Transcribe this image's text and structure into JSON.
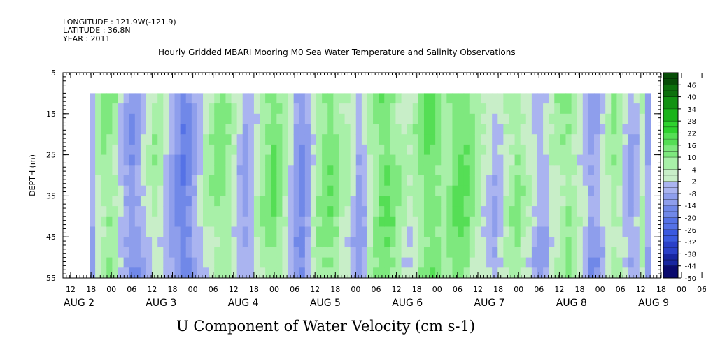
{
  "header": {
    "longitude": "LONGITUDE : 121.9W(-121.9)",
    "latitude": "LATITUDE : 36.8N",
    "year": "YEAR : 2011"
  },
  "chart_data": {
    "type": "heatmap",
    "title": "Hourly Gridded MBARI Mooring M0 Sea Water Temperature and Salinity Observations",
    "xlabel": "U Component of Water Velocity (cm s-1)",
    "ylabel": "DEPTH (m)",
    "ylim": [
      5,
      55
    ],
    "y_inverted": true,
    "y_ticks": [
      5,
      15,
      25,
      35,
      45,
      55
    ],
    "x_hour_ticks": [
      "12",
      "18",
      "00",
      "06",
      "12",
      "18",
      "00",
      "06",
      "12",
      "18",
      "00",
      "06",
      "12",
      "18",
      "00",
      "06",
      "12",
      "18",
      "00",
      "06",
      "12",
      "18",
      "00",
      "06",
      "12",
      "18",
      "00",
      "06",
      "12",
      "18",
      "00",
      "06"
    ],
    "x_day_labels": [
      "AUG  2",
      "AUG  3",
      "AUG  4",
      "AUG  5",
      "AUG  6",
      "AUG  7",
      "AUG  8",
      "AUG  9"
    ],
    "depth_range": [
      10,
      55
    ],
    "colorbar": {
      "levels": [
        -50,
        -44,
        -38,
        -32,
        -26,
        -20,
        -14,
        -8,
        -2,
        4,
        10,
        16,
        22,
        28,
        34,
        40,
        46
      ],
      "labels": [
        "-50",
        "-44",
        "-38",
        "-32",
        "-26",
        "-20",
        "-14",
        "-8",
        "-2",
        "4",
        "10",
        "16",
        "22",
        "28",
        "34",
        "40",
        "46"
      ]
    },
    "column_u_values": [
      -6,
      4,
      8,
      10,
      6,
      -2,
      -8,
      -12,
      -10,
      -4,
      2,
      6,
      4,
      -2,
      -8,
      -14,
      -18,
      -14,
      -8,
      -2,
      4,
      8,
      10,
      12,
      8,
      2,
      -4,
      -8,
      -4,
      2,
      8,
      12,
      14,
      10,
      6,
      -2,
      -10,
      -14,
      -8,
      2,
      8,
      12,
      14,
      10,
      6,
      4,
      -2,
      -8,
      -4,
      4,
      10,
      14,
      16,
      12,
      8,
      4,
      2,
      6,
      10,
      14,
      16,
      12,
      8,
      10,
      14,
      16,
      14,
      10,
      6,
      2,
      -2,
      -6,
      -2,
      4,
      8,
      10,
      6,
      2,
      -2,
      -6,
      -4,
      2,
      6,
      8,
      10,
      6,
      2,
      -4,
      -10,
      -8,
      -2,
      4,
      8,
      6,
      -2,
      -8,
      -4,
      4,
      -8
    ]
  }
}
